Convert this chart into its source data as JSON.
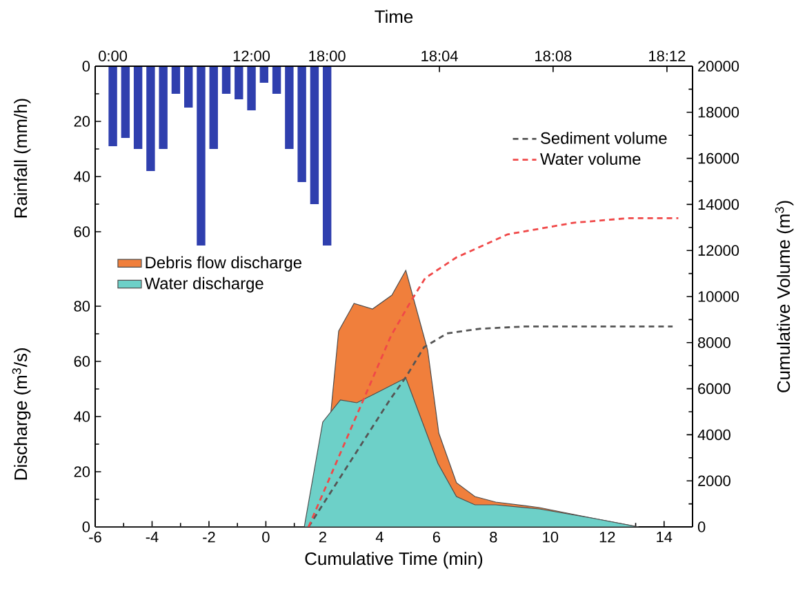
{
  "chart_data": [
    {
      "type": "bar",
      "ylabel": "Rainfall (mm/h)",
      "color": "#2f3fae",
      "categories": [
        "0:00",
        null,
        null,
        null,
        null,
        null,
        null,
        null,
        null,
        null,
        null,
        "12:00",
        null,
        null,
        null,
        null,
        null,
        "18:00"
      ],
      "values": [
        29,
        26,
        30,
        38,
        30,
        10,
        15,
        65,
        30,
        10,
        12,
        16,
        6,
        10,
        30,
        42,
        50,
        65
      ],
      "ylim": [
        167,
        0
      ],
      "yticks": [
        0,
        20,
        40,
        60
      ]
    },
    {
      "type": "area",
      "xlabel": "Cumulative Time (min)",
      "ylabel": "Discharge (m$^{3}$/s)",
      "y2label": "Cumulative Volume (m$^{3}$)",
      "x2label": "Time",
      "xlim": [
        -6,
        15
      ],
      "xticks": [
        -6,
        -4,
        -2,
        0,
        2,
        4,
        6,
        8,
        10,
        12,
        14
      ],
      "x2lim": [
        17.865,
        18.215
      ],
      "x2ticks": [
        {
          "value": 18.0667,
          "label": "18:04"
        },
        {
          "value": 18.1333,
          "label": "18:08"
        },
        {
          "value": 18.2,
          "label": "18:12"
        }
      ],
      "ylim": [
        0,
        167
      ],
      "yticks": [
        0,
        20,
        40,
        60,
        80
      ],
      "y2lim": [
        0,
        20000
      ],
      "y2ticks": [
        0,
        2000,
        4000,
        6000,
        8000,
        10000,
        12000,
        14000,
        16000,
        18000,
        20000
      ],
      "legend": "top left",
      "series": [
        {
          "name": "Debris flow discharge",
          "color": "#f07f3c",
          "x": [
            -6,
            1.35,
            2.0,
            2.56,
            3.1,
            3.75,
            4.43,
            4.92,
            5.69,
            6.08,
            6.7,
            7.35,
            8.08,
            9.62,
            11.57,
            13.1
          ],
          "values": [
            0,
            0,
            11,
            71,
            81,
            79,
            84,
            93,
            64,
            34,
            16,
            11,
            9,
            7,
            3,
            0
          ]
        },
        {
          "name": "Water discharge",
          "color": "#6dd0c8",
          "x": [
            -6,
            1.35,
            2.0,
            2.62,
            3.2,
            3.78,
            4.92,
            6.05,
            6.7,
            7.35,
            8.08,
            9.62,
            11.57,
            13.1
          ],
          "values": [
            0,
            0,
            38,
            46,
            45,
            48,
            54,
            23,
            11,
            8,
            8,
            6.5,
            3,
            0
          ]
        },
        {
          "name": "Sediment volume",
          "type": "line",
          "axis": "y2",
          "line_style": "dashed",
          "color": "#555555",
          "x": [
            1.5,
            4.35,
            4.92,
            5.56,
            6.37,
            7.5,
            9.1,
            14.3
          ],
          "values": [
            0,
            5500,
            6500,
            7800,
            8400,
            8600,
            8700,
            8700
          ]
        },
        {
          "name": "Water volume",
          "type": "line",
          "axis": "y2",
          "line_style": "dashed",
          "color": "#f04848",
          "x": [
            1.5,
            4.4,
            5.1,
            5.6,
            6.7,
            8.5,
            10.8,
            12.7,
            14.5
          ],
          "values": [
            0,
            8300,
            9800,
            10800,
            11700,
            12700,
            13200,
            13400,
            13400
          ]
        }
      ]
    }
  ]
}
